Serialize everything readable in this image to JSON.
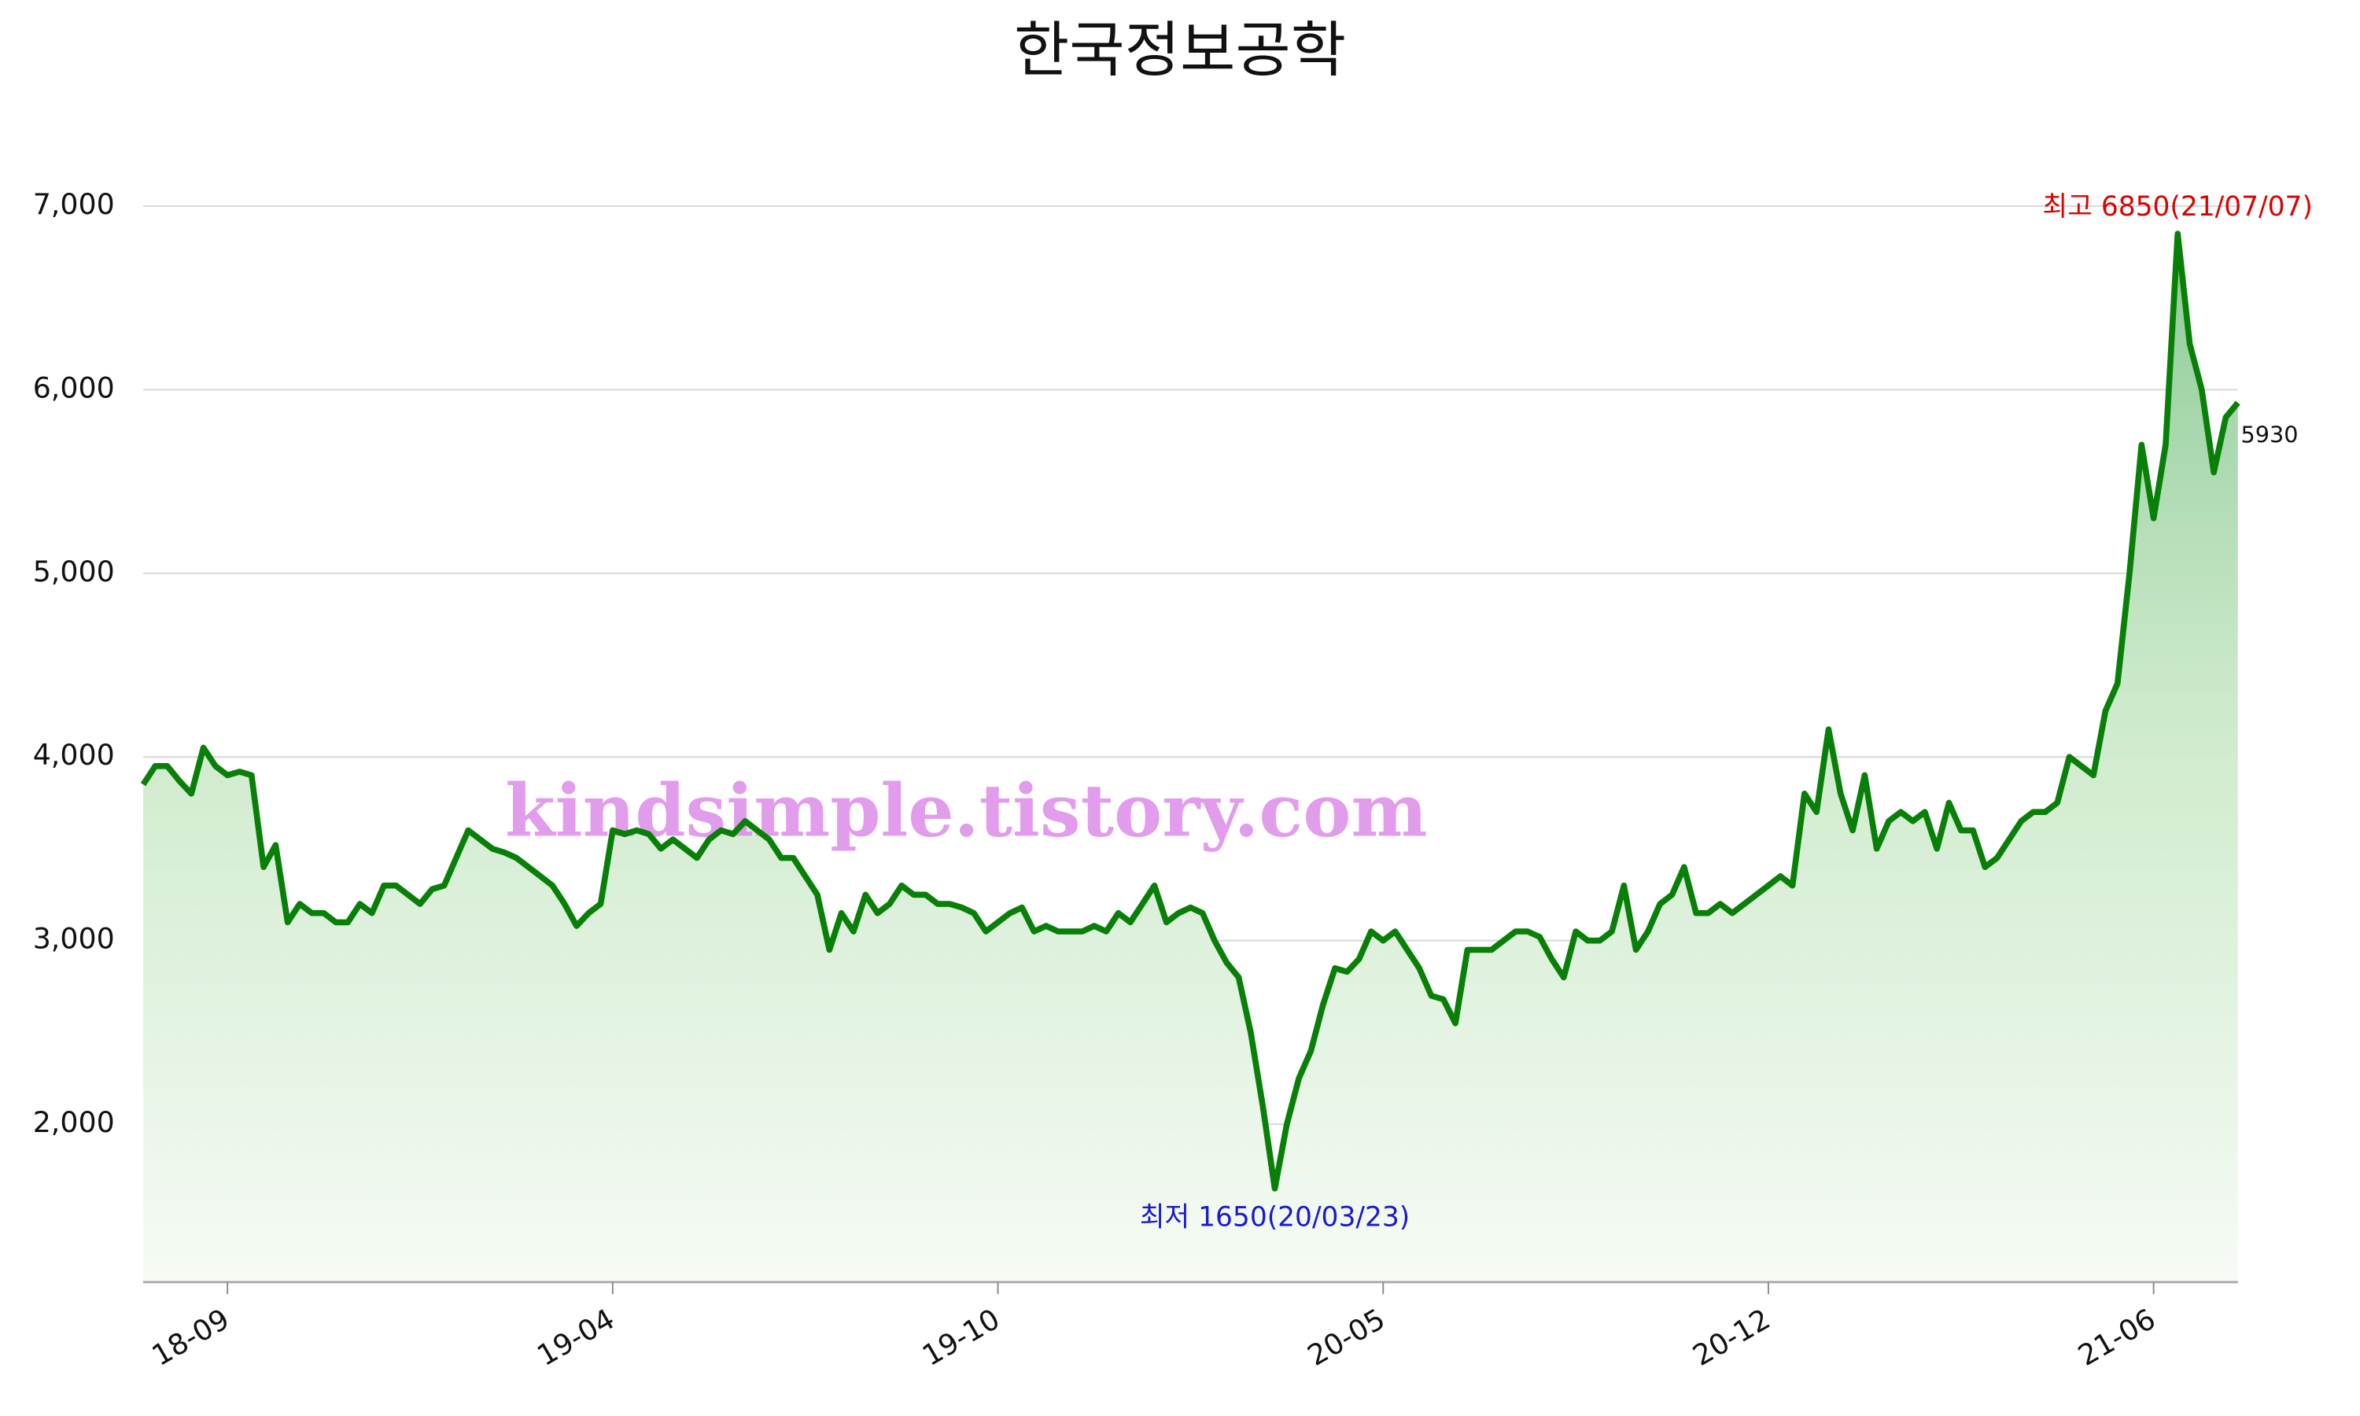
{
  "chart_data": {
    "type": "line",
    "title": "한국정보공학",
    "watermark": "kindsimple.tistory.com",
    "color": "#088008",
    "grid": true,
    "categories": [
      null,
      null,
      null,
      null,
      null,
      null,
      null,
      "18-09",
      null,
      null,
      null,
      null,
      null,
      null,
      null,
      null,
      null,
      null,
      null,
      null,
      null,
      null,
      null,
      null,
      null,
      null,
      null,
      null,
      null,
      null,
      null,
      null,
      null,
      null,
      null,
      null,
      null,
      null,
      null,
      "19-04",
      null,
      null,
      null,
      null,
      null,
      null,
      null,
      null,
      null,
      null,
      null,
      null,
      null,
      null,
      null,
      null,
      null,
      null,
      null,
      null,
      null,
      null,
      null,
      null,
      null,
      null,
      null,
      null,
      null,
      null,
      null,
      "19-10",
      null,
      null,
      null,
      null,
      null,
      null,
      null,
      null,
      null,
      null,
      null,
      null,
      null,
      null,
      null,
      null,
      null,
      null,
      null,
      null,
      null,
      null,
      null,
      null,
      null,
      null,
      null,
      null,
      null,
      null,
      null,
      "20-05",
      null,
      null,
      null,
      null,
      null,
      null,
      null,
      null,
      null,
      null,
      null,
      null,
      null,
      null,
      null,
      null,
      null,
      null,
      null,
      null,
      null,
      null,
      null,
      null,
      null,
      null,
      null,
      null,
      null,
      null,
      null,
      "20-12",
      null,
      null,
      null,
      null,
      null,
      null,
      null,
      null,
      null,
      null,
      null,
      null,
      null,
      null,
      null,
      null,
      null,
      null,
      null,
      null,
      null,
      null,
      null,
      null,
      null,
      null,
      null,
      null,
      null,
      null,
      null,
      "21-06",
      null,
      null,
      null,
      null,
      null,
      null,
      null
    ],
    "values": [
      3850,
      3950,
      3950,
      3870,
      3800,
      4050,
      3950,
      3900,
      3920,
      3900,
      3400,
      3520,
      3100,
      3200,
      3150,
      3150,
      3100,
      3100,
      3200,
      3150,
      3300,
      3300,
      3250,
      3200,
      3280,
      3300,
      3450,
      3600,
      3550,
      3500,
      3480,
      3450,
      3400,
      3350,
      3300,
      3200,
      3080,
      3150,
      3200,
      3600,
      3580,
      3600,
      3580,
      3500,
      3550,
      3500,
      3450,
      3550,
      3600,
      3580,
      3650,
      3600,
      3550,
      3450,
      3450,
      3350,
      3250,
      2950,
      3150,
      3050,
      3250,
      3150,
      3200,
      3300,
      3250,
      3250,
      3200,
      3200,
      3180,
      3150,
      3050,
      3100,
      3150,
      3180,
      3050,
      3080,
      3050,
      3050,
      3050,
      3080,
      3050,
      3150,
      3100,
      3200,
      3300,
      3100,
      3150,
      3180,
      3150,
      3000,
      2880,
      2800,
      2500,
      2100,
      1650,
      2000,
      2250,
      2400,
      2650,
      2850,
      2830,
      2900,
      3050,
      3000,
      3050,
      2950,
      2850,
      2700,
      2680,
      2550,
      2950,
      2950,
      2950,
      3000,
      3050,
      3050,
      3020,
      2900,
      2800,
      3050,
      3000,
      3000,
      3050,
      3300,
      2950,
      3050,
      3200,
      3250,
      3400,
      3150,
      3150,
      3200,
      3150,
      3200,
      3250,
      3300,
      3350,
      3300,
      3800,
      3700,
      4150,
      3800,
      3600,
      3900,
      3500,
      3650,
      3700,
      3650,
      3700,
      3500,
      3750,
      3600,
      3600,
      3400,
      3450,
      3550,
      3650,
      3700,
      3700,
      3750,
      4000,
      3950,
      3900,
      4250,
      4400,
      5000,
      5700,
      5300,
      5700,
      6850,
      6250,
      6000,
      5550,
      5850,
      5930
    ],
    "ylim": [
      1140,
      7000
    ],
    "yticks": [
      {
        "value": 2000,
        "label": "2,000"
      },
      {
        "value": 3000,
        "label": "3,000"
      },
      {
        "value": 4000,
        "label": "4,000"
      },
      {
        "value": 5000,
        "label": "5,000"
      },
      {
        "value": 6000,
        "label": "6,000"
      },
      {
        "value": 7000,
        "label": "7,000"
      }
    ],
    "annotations": {
      "max": "최고 6850(21/07/07)",
      "min": "최저 1650(20/03/23)"
    }
  }
}
